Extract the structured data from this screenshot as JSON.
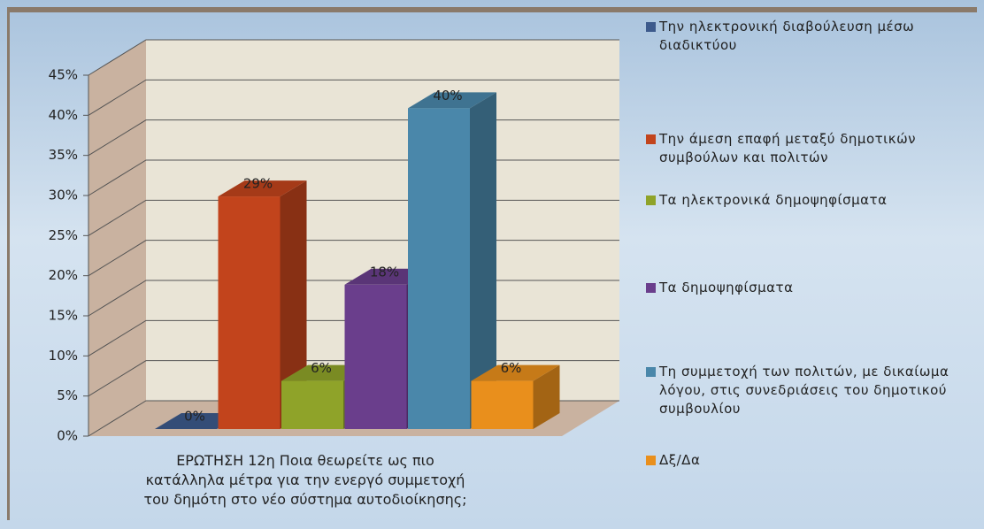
{
  "chart_data": {
    "type": "bar3d",
    "x_label": "ΕΡΩΤΗΣΗ 12η   Ποια θεωρείτε ως πιο κατάλληλα μέτρα για την ενεργό συμμετοχή του δημότη στο νέο σύστημα αυτοδιοίκησης;",
    "ylim": [
      0,
      45
    ],
    "yticks": [
      {
        "value": 0,
        "label": "0%"
      },
      {
        "value": 5,
        "label": "5%"
      },
      {
        "value": 10,
        "label": "10%"
      },
      {
        "value": 15,
        "label": "15%"
      },
      {
        "value": 20,
        "label": "20%"
      },
      {
        "value": 25,
        "label": "25%"
      },
      {
        "value": 30,
        "label": "30%"
      },
      {
        "value": 35,
        "label": "35%"
      },
      {
        "value": 40,
        "label": "40%"
      },
      {
        "value": 45,
        "label": "45%"
      }
    ],
    "grid": true,
    "legend": "right",
    "series": [
      {
        "name": "Την ηλεκτρονική διαβούλευση μέσω διαδικτύου",
        "color": "#3d5a8c",
        "values": [
          0
        ],
        "value_labels": [
          "0%"
        ]
      },
      {
        "name": "Την άμεση επαφή μεταξύ δημοτικών συμβούλων και πολιτών",
        "color": "#c2441c",
        "values": [
          29
        ],
        "value_labels": [
          "29%"
        ]
      },
      {
        "name": "Τα ηλεκτρονικά δημοψηφίσματα",
        "color": "#8fa329",
        "values": [
          6
        ],
        "value_labels": [
          "6%"
        ]
      },
      {
        "name": "Τα δημοψηφίσματα",
        "color": "#6a3e8c",
        "values": [
          18
        ],
        "value_labels": [
          "18%"
        ]
      },
      {
        "name": "Τη συμμετοχή των πολιτών, με δικαίωμα λόγου, στις συνεδριάσεις του δημοτικού συμβουλίου",
        "color": "#4a87aa",
        "values": [
          40
        ],
        "value_labels": [
          "40%"
        ]
      },
      {
        "name": "Δξ/Δα",
        "color": "#e98f1c",
        "values": [
          6
        ],
        "value_labels": [
          "6%"
        ]
      }
    ]
  }
}
